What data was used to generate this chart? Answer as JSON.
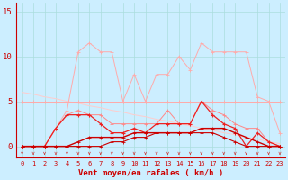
{
  "x": [
    0,
    1,
    2,
    3,
    4,
    5,
    6,
    7,
    8,
    9,
    10,
    11,
    12,
    13,
    14,
    15,
    16,
    17,
    18,
    19,
    20,
    21,
    22,
    23
  ],
  "line_rafales_max": [
    0.0,
    0.0,
    0.0,
    2.0,
    4.0,
    10.5,
    11.5,
    10.5,
    10.5,
    5.0,
    8.0,
    5.0,
    8.0,
    8.0,
    10.0,
    8.5,
    11.5,
    10.5,
    10.5,
    10.5,
    10.5,
    5.5,
    5.0,
    1.5
  ],
  "line_flat5": [
    5.0,
    5.0,
    5.0,
    5.0,
    5.0,
    5.0,
    5.0,
    5.0,
    5.0,
    5.0,
    5.0,
    5.0,
    5.0,
    5.0,
    5.0,
    5.0,
    5.0,
    5.0,
    5.0,
    5.0,
    5.0,
    5.0,
    5.0,
    5.0
  ],
  "line_declining": [
    6.0,
    5.8,
    5.5,
    5.3,
    5.0,
    4.8,
    4.5,
    4.3,
    4.0,
    3.8,
    3.5,
    3.3,
    3.0,
    2.8,
    2.5,
    2.3,
    2.0,
    1.8,
    1.5,
    1.3,
    1.0,
    0.8,
    0.5,
    0.3
  ],
  "line_rafales_med": [
    0.0,
    0.0,
    0.0,
    2.0,
    3.5,
    4.0,
    3.5,
    3.5,
    2.5,
    2.5,
    2.5,
    2.5,
    2.5,
    4.0,
    2.5,
    2.5,
    5.0,
    4.0,
    3.5,
    2.5,
    2.0,
    2.0,
    0.5,
    0.0
  ],
  "line_vent_moyen": [
    0.0,
    0.0,
    0.0,
    2.0,
    3.5,
    3.5,
    3.5,
    2.5,
    1.5,
    1.5,
    2.0,
    1.5,
    2.5,
    2.5,
    2.5,
    2.5,
    5.0,
    3.5,
    2.5,
    2.0,
    0.0,
    1.5,
    0.5,
    0.0
  ],
  "line_dark1": [
    0.0,
    0.0,
    0.0,
    0.0,
    0.0,
    0.5,
    1.0,
    1.0,
    1.0,
    1.0,
    1.5,
    1.5,
    1.5,
    1.5,
    1.5,
    1.5,
    2.0,
    2.0,
    2.0,
    1.5,
    1.0,
    0.5,
    0.0,
    0.0
  ],
  "line_dark2": [
    0.0,
    0.0,
    0.0,
    0.0,
    0.0,
    0.0,
    0.0,
    0.0,
    0.5,
    0.5,
    1.0,
    1.0,
    1.5,
    1.5,
    1.5,
    1.5,
    1.5,
    1.5,
    1.0,
    0.5,
    0.0,
    0.0,
    0.0,
    0.0
  ],
  "bg_color": "#cceeff",
  "grid_color": "#aadddd",
  "color_light_pink": "#ffaaaa",
  "color_salmon": "#ff8888",
  "color_mid_red": "#ff5555",
  "color_red": "#ee2222",
  "color_dark_red": "#cc0000",
  "color_very_light": "#ffcccc",
  "xlabel": "Vent moyen/en rafales ( km/h )",
  "yticks": [
    0,
    5,
    10,
    15
  ],
  "xticks": [
    0,
    1,
    2,
    3,
    4,
    5,
    6,
    7,
    8,
    9,
    10,
    11,
    12,
    13,
    14,
    15,
    16,
    17,
    18,
    19,
    20,
    21,
    22,
    23
  ],
  "ylim": [
    -1.2,
    16.0
  ],
  "xlim": [
    -0.5,
    23.5
  ]
}
